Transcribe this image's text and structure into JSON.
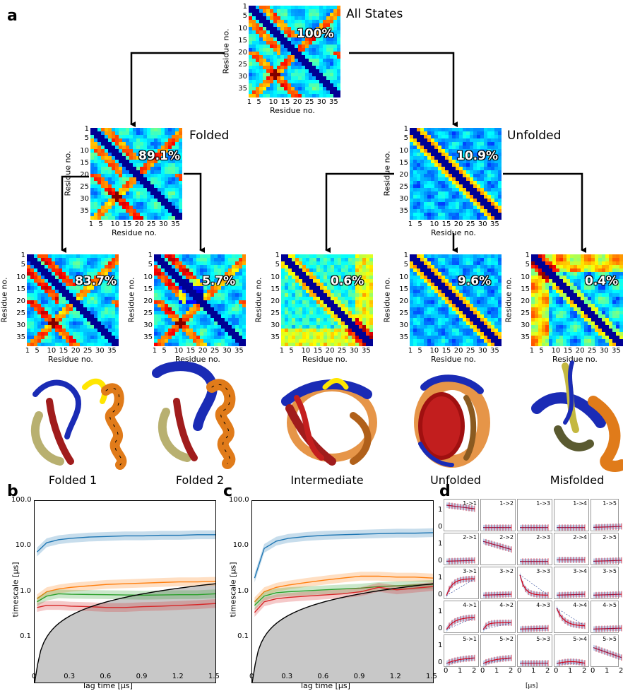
{
  "panel_labels": {
    "a": "a",
    "b": "b",
    "c": "c",
    "d": "d"
  },
  "axis_labels": {
    "residue": "Residue no.",
    "timescale": "timescale [μs]",
    "lagtime": "lag time [μs]",
    "d_x": "[μs]"
  },
  "contact_ticks": [
    "1",
    "5",
    "10",
    "15",
    "20",
    "25",
    "30",
    "35"
  ],
  "contact_ticks_y": [
    "1",
    "5",
    "10",
    "15",
    "20",
    "25",
    "30",
    "35"
  ],
  "maps": {
    "all": {
      "title": "All States",
      "percent": "100%"
    },
    "folded": {
      "title": "Folded",
      "percent": "89.1%"
    },
    "unfolded": {
      "title": "Unfolded",
      "percent": "10.9%"
    },
    "f1": {
      "percent": "83.7%"
    },
    "f2": {
      "percent": "5.7%"
    },
    "int": {
      "percent": "0.6%"
    },
    "unf": {
      "percent": "9.6%"
    },
    "mis": {
      "percent": "0.4%"
    }
  },
  "structure_labels": [
    "Folded 1",
    "Folded 2",
    "Intermediate",
    "Unfolded",
    "Misfolded"
  ],
  "colors": {
    "blue": "#1f77b4",
    "orange": "#ff7f0e",
    "green": "#2ca02c",
    "red": "#d62728",
    "gray": "#c8c8c8"
  },
  "chart_data": [
    {
      "type": "line",
      "panel": "b",
      "xlabel": "lag time [μs]",
      "ylabel": "timescale [μs]",
      "xlim": [
        0,
        1.5
      ],
      "ylim": [
        0.01,
        100
      ],
      "yscale": "log",
      "xticks": [
        "0",
        "0.3",
        "0.6",
        "0.9",
        "1.2",
        "1.5"
      ],
      "yticks": [
        "0.1",
        "1.0",
        "10.0",
        "100.0"
      ],
      "x": [
        0.02,
        0.1,
        0.2,
        0.3,
        0.45,
        0.6,
        0.75,
        0.9,
        1.05,
        1.2,
        1.35,
        1.5
      ],
      "series": [
        {
          "values": [
            7.5,
            12,
            14,
            15,
            16,
            16.5,
            17,
            17,
            17.5,
            17.5,
            18,
            18
          ]
        },
        {
          "values": [
            0.7,
            1.0,
            1.15,
            1.25,
            1.35,
            1.45,
            1.5,
            1.55,
            1.6,
            1.65,
            1.65,
            1.7
          ]
        },
        {
          "values": [
            0.6,
            0.8,
            0.9,
            0.88,
            0.87,
            0.86,
            0.85,
            0.84,
            0.85,
            0.86,
            0.86,
            0.9
          ]
        },
        {
          "values": [
            0.45,
            0.5,
            0.5,
            0.48,
            0.47,
            0.45,
            0.45,
            0.47,
            0.48,
            0.5,
            0.52,
            0.55
          ]
        },
        {
          "values": [
            0.012,
            0.1,
            0.2,
            0.3,
            0.45,
            0.6,
            0.75,
            0.9,
            1.05,
            1.2,
            1.35,
            1.5
          ]
        }
      ]
    },
    {
      "type": "line",
      "panel": "c",
      "xlabel": "lag time [μs]",
      "ylabel": "timescale [μs]",
      "xlim": [
        0,
        1.5
      ],
      "ylim": [
        0.01,
        100
      ],
      "yscale": "log",
      "xticks": [
        "0",
        "0.3",
        "0.6",
        "0.9",
        "1.2",
        "1.5"
      ],
      "yticks": [
        "0.1",
        "1.0",
        "10.0",
        "100.0"
      ],
      "x": [
        0.02,
        0.1,
        0.2,
        0.3,
        0.45,
        0.6,
        0.75,
        0.9,
        1.05,
        1.2,
        1.35,
        1.5
      ],
      "series": [
        {
          "values": [
            2.0,
            9,
            13,
            15,
            16.5,
            17.5,
            18,
            18.5,
            19,
            19.5,
            19.5,
            20
          ]
        },
        {
          "values": [
            0.6,
            1.0,
            1.25,
            1.4,
            1.6,
            1.8,
            2.0,
            2.2,
            2.2,
            2.1,
            2.1,
            2.0
          ]
        },
        {
          "values": [
            0.5,
            0.8,
            0.95,
            1.0,
            1.05,
            1.1,
            1.15,
            1.2,
            1.3,
            1.35,
            1.4,
            1.45
          ]
        },
        {
          "values": [
            0.35,
            0.6,
            0.7,
            0.75,
            0.8,
            0.85,
            0.9,
            1.0,
            1.25,
            1.1,
            1.2,
            1.3
          ]
        },
        {
          "values": [
            0.012,
            0.1,
            0.2,
            0.3,
            0.45,
            0.6,
            0.75,
            0.9,
            1.05,
            1.2,
            1.35,
            1.5
          ]
        }
      ]
    }
  ],
  "ck_test": {
    "labels": [
      [
        "1->1",
        "1->2",
        "1->3",
        "1->4",
        "1->5"
      ],
      [
        "2->1",
        "2->2",
        "2->3",
        "2->4",
        "2->5"
      ],
      [
        "3->1",
        "3->2",
        "3->3",
        "3->4",
        "3->5"
      ],
      [
        "4->1",
        "4->2",
        "4->3",
        "4->4",
        "4->5"
      ],
      [
        "5->1",
        "5->2",
        "5->3",
        "5->4",
        "5->5"
      ]
    ],
    "yticks": [
      "1",
      "0"
    ],
    "xticks": [
      "0",
      "1",
      "2"
    ],
    "shapes": [
      [
        "decay_high",
        "flat0",
        "flat0",
        "flat0",
        "flat0s"
      ],
      [
        "flat0s",
        "decay_mid",
        "flat0",
        "low",
        "flat0s"
      ],
      [
        "rise_high",
        "flat0s",
        "decay_fast",
        "flat0s",
        "flat0s"
      ],
      [
        "rise_mid",
        "rise_flat",
        "flat0s",
        "decay_mid2",
        "flat0s"
      ],
      [
        "rise_low",
        "rise_low",
        "flat0",
        "bump",
        "decay_steady"
      ]
    ]
  }
}
